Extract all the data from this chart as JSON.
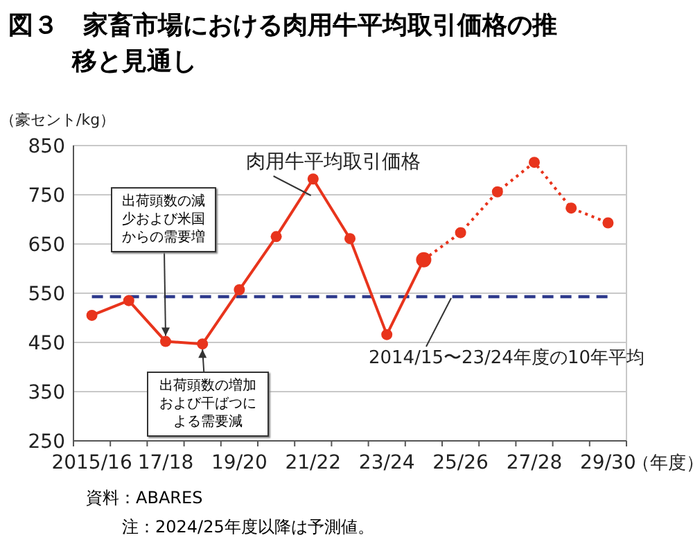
{
  "chart_data": {
    "type": "line",
    "title": "図３　家畜市場における肉用牛平均取引価格の推移と見通し",
    "ylabel": "（豪セント/kg）",
    "xlabel": "（年度）",
    "categories": [
      "2015/16",
      null,
      "17/18",
      null,
      "19/20",
      null,
      "21/22",
      null,
      "23/24",
      null,
      "25/26",
      null,
      "27/28",
      null,
      "29/30"
    ],
    "series": [
      {
        "name": "肉用牛平均取引価格",
        "color": "#e8341c",
        "line_style": "solid",
        "values": [
          505,
          535,
          452,
          447,
          557,
          665,
          782,
          661,
          466,
          618,
          null,
          null,
          null,
          null,
          null
        ]
      },
      {
        "color": "#e8341c",
        "line_style": "dotted",
        "values": [
          null,
          null,
          null,
          null,
          null,
          null,
          null,
          null,
          null,
          618,
          673,
          756,
          816,
          723,
          693
        ]
      }
    ],
    "marker": "circle",
    "ylim": [
      250,
      850
    ],
    "yticks": [
      250,
      350,
      450,
      550,
      650,
      750,
      850
    ],
    "grid": "y",
    "ref_lines": [
      {
        "axis": "y",
        "value": 543,
        "label": "2014/15〜23/24年度の10年平均",
        "color": "#2e3a8c",
        "line_style": "dashed"
      }
    ],
    "annotations": [
      {
        "text": "出荷頭数の減少および米国からの需要増",
        "x": "17/18",
        "y": 452
      },
      {
        "text": "出荷頭数の増加および干ばつによる需要減",
        "y": 447
      },
      "資料：ABARES",
      "注：2024/25年度以降は予測値。"
    ]
  }
}
